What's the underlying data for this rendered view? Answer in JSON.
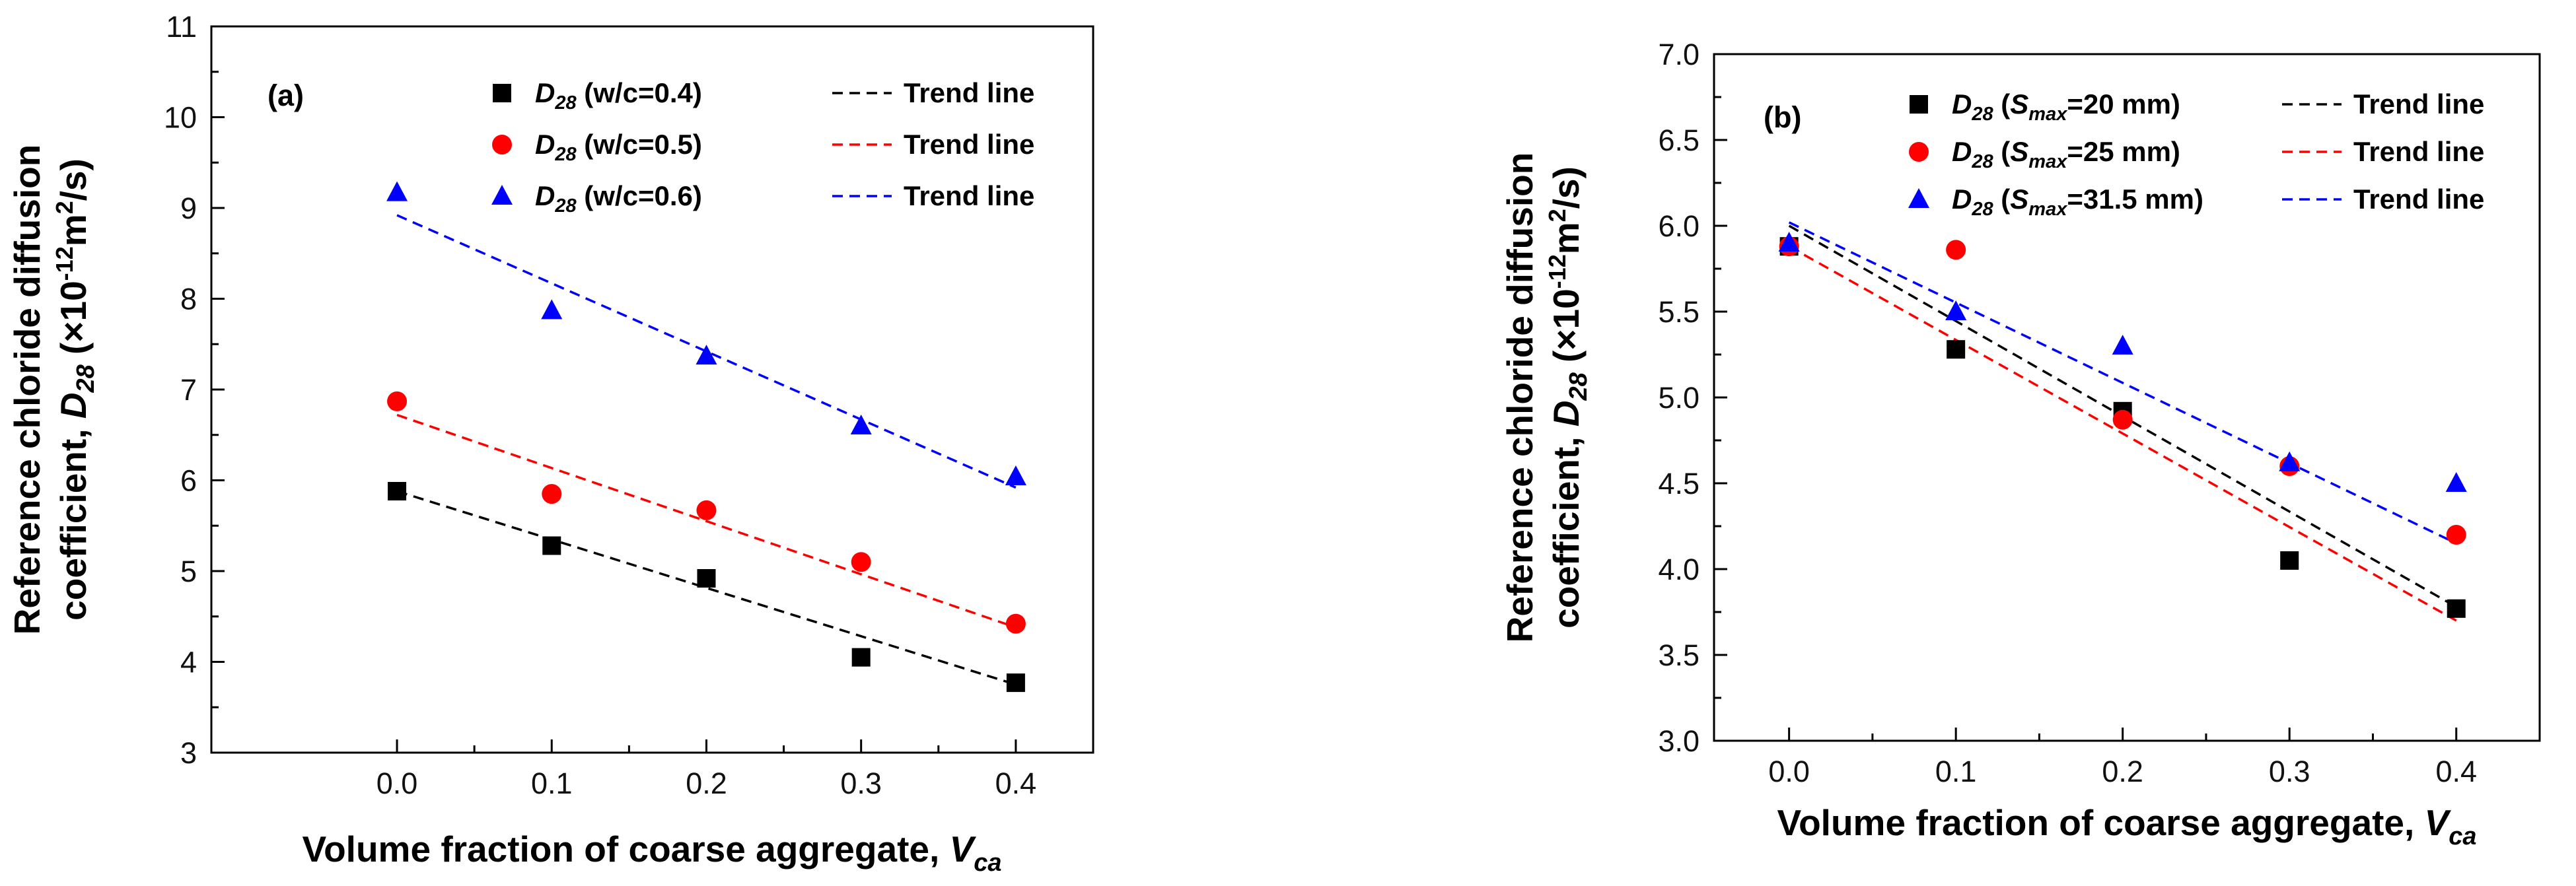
{
  "chart_data": [
    {
      "type": "scatter",
      "panel_label": "(a)",
      "xlabel": "Volume fraction of coarse aggregate, ",
      "xlabel_var": "V",
      "xlabel_sub": "ca",
      "ylabel_line1": "Reference chloride diffusion",
      "ylabel_line2_pre": "coefficient, ",
      "ylabel_var": "D",
      "ylabel_sub": "28",
      "ylabel_unit_pre": " (×10",
      "ylabel_unit_sup": "-12",
      "ylabel_unit_mid": "m",
      "ylabel_unit_sup2": "2",
      "ylabel_unit_post": "/s)",
      "xlim": [
        -0.12,
        0.45
      ],
      "ylim": [
        3,
        11
      ],
      "xticks": [
        "0.0",
        "0.1",
        "0.2",
        "0.3",
        "0.4"
      ],
      "yticks": [
        "3",
        "4",
        "5",
        "6",
        "7",
        "8",
        "9",
        "10",
        "11"
      ],
      "x": [
        0.0,
        0.1,
        0.2,
        0.3,
        0.4
      ],
      "series": [
        {
          "name": "D28 (w/c=0.4)",
          "var": "D",
          "sub": "28",
          "cond": " (w/c=0.4)",
          "marker": "square",
          "color": "#000000",
          "values": [
            5.88,
            5.28,
            4.92,
            4.05,
            3.77
          ],
          "trend": [
            5.88,
            3.75
          ],
          "trend_label": "Trend line"
        },
        {
          "name": "D28 (w/c=0.5)",
          "var": "D",
          "sub": "28",
          "cond": " (w/c=0.5)",
          "marker": "circle",
          "color": "#ff0000",
          "values": [
            6.87,
            5.85,
            5.67,
            5.1,
            4.42
          ],
          "trend": [
            6.72,
            4.38
          ],
          "trend_label": "Trend line"
        },
        {
          "name": "D28 (w/c=0.6)",
          "var": "D",
          "sub": "28",
          "cond": " (w/c=0.6)",
          "marker": "triangle",
          "color": "#0000ff",
          "values": [
            9.17,
            7.87,
            7.37,
            6.6,
            6.04
          ],
          "trend": [
            8.92,
            5.92
          ],
          "trend_label": "Trend line"
        }
      ]
    },
    {
      "type": "scatter",
      "panel_label": "(b)",
      "xlabel": "Volume fraction of coarse aggregate, ",
      "xlabel_var": "V",
      "xlabel_sub": "ca",
      "ylabel_line1": "Reference chloride diffusion",
      "ylabel_line2_pre": "coefficient, ",
      "ylabel_var": "D",
      "ylabel_sub": "28",
      "ylabel_unit_pre": " (×10",
      "ylabel_unit_sup": "-12",
      "ylabel_unit_mid": "m",
      "ylabel_unit_sup2": "2",
      "ylabel_unit_post": "/s)",
      "xlim": [
        -0.045,
        0.45
      ],
      "ylim": [
        3.0,
        7.0
      ],
      "xticks": [
        "0.0",
        "0.1",
        "0.2",
        "0.3",
        "0.4"
      ],
      "yticks": [
        "3.0",
        "3.5",
        "4.0",
        "4.5",
        "5.0",
        "5.5",
        "6.0",
        "6.5",
        "7.0"
      ],
      "x": [
        0.0,
        0.1,
        0.2,
        0.3,
        0.4
      ],
      "series": [
        {
          "name": "D28 (Smax=20 mm)",
          "var": "D",
          "sub": "28",
          "cond_pre": " (",
          "cond_var": "S",
          "cond_sub": "max",
          "cond_post": "=20 mm)",
          "marker": "square",
          "color": "#000000",
          "values": [
            5.88,
            5.28,
            4.92,
            4.05,
            3.77
          ],
          "trend": [
            6.0,
            3.78
          ],
          "trend_label": "Trend line"
        },
        {
          "name": "D28 (Smax=25 mm)",
          "var": "D",
          "sub": "28",
          "cond_pre": " (",
          "cond_var": "S",
          "cond_sub": "max",
          "cond_post": "=25 mm)",
          "marker": "circle",
          "color": "#ff0000",
          "values": [
            5.88,
            5.86,
            4.87,
            4.6,
            4.2
          ],
          "trend": [
            5.88,
            3.7
          ],
          "trend_label": "Trend line"
        },
        {
          "name": "D28 (Smax=31.5 mm)",
          "var": "D",
          "sub": "28",
          "cond_pre": " (",
          "cond_var": "S",
          "cond_sub": "max",
          "cond_post": "=31.5 mm)",
          "marker": "triangle",
          "color": "#0000ff",
          "values": [
            5.9,
            5.5,
            5.3,
            4.62,
            4.5
          ],
          "trend": [
            6.02,
            4.15
          ],
          "trend_label": "Trend line"
        }
      ]
    }
  ]
}
